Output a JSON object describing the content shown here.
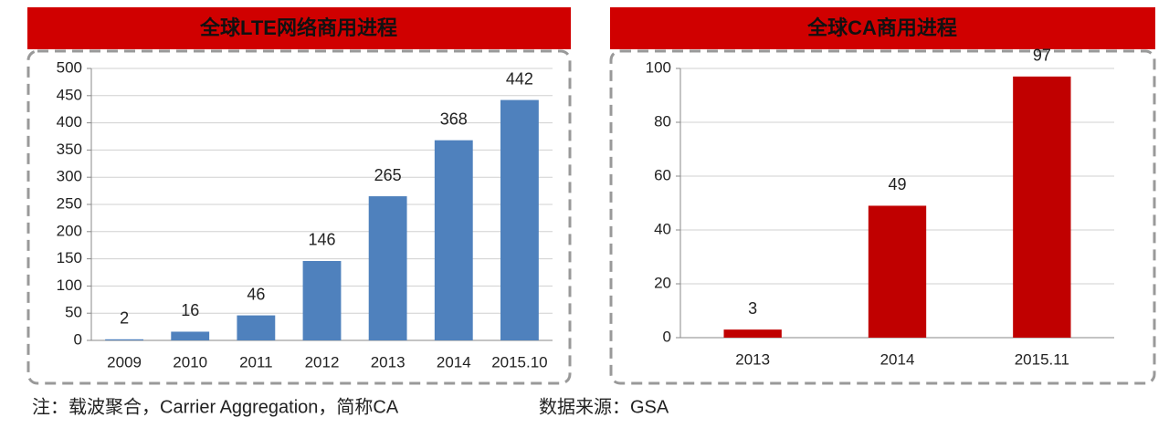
{
  "chart_data": [
    {
      "type": "bar",
      "title": "全球LTE网络商用进程",
      "categories": [
        "2009",
        "2010",
        "2011",
        "2012",
        "2013",
        "2014",
        "2015.10"
      ],
      "values": [
        2,
        16,
        46,
        146,
        265,
        368,
        442
      ],
      "color": "#4f81bd",
      "ylim": [
        0,
        500
      ],
      "yticks": [
        0,
        50,
        100,
        150,
        200,
        250,
        300,
        350,
        400,
        450,
        500
      ],
      "grid": true
    },
    {
      "type": "bar",
      "title": "全球CA商用进程",
      "categories": [
        "2013",
        "2014",
        "2015.11"
      ],
      "values": [
        3,
        49,
        97
      ],
      "color": "#c00000",
      "ylim": [
        0,
        100
      ],
      "yticks": [
        0,
        20,
        40,
        60,
        80,
        100
      ],
      "grid": true
    }
  ],
  "footnote": "注：载波聚合，Carrier Aggregation，简称CA",
  "source": "数据来源：GSA"
}
